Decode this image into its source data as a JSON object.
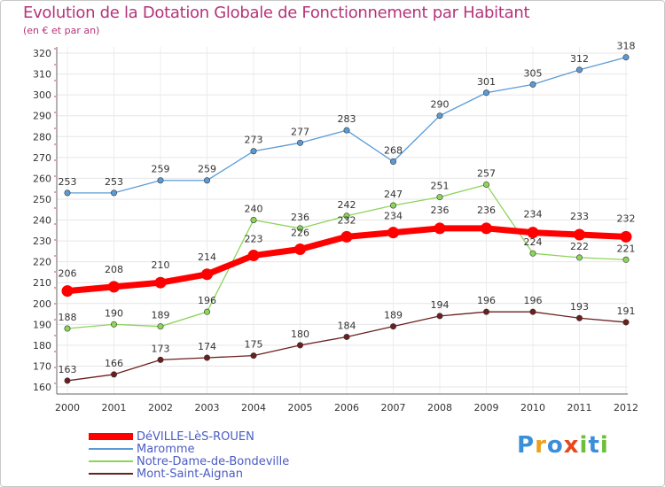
{
  "chart_data": {
    "type": "line",
    "title": "Evolution de la Dotation Globale de Fonctionnement par Habitant",
    "subtitle": "(en € et par an)",
    "x": [
      "2000",
      "2001",
      "2002",
      "2003",
      "2004",
      "2005",
      "2006",
      "2007",
      "2008",
      "2009",
      "2010",
      "2011",
      "2012"
    ],
    "ylim": [
      160,
      320
    ],
    "yticks": [
      160,
      170,
      180,
      190,
      200,
      210,
      220,
      230,
      240,
      250,
      260,
      270,
      280,
      290,
      300,
      310,
      320
    ],
    "grid": true,
    "legend_placement": "bottom-left",
    "series": [
      {
        "name": "DéVILLE-LèS-ROUEN",
        "color": "#ff0000",
        "values": [
          206,
          208,
          210,
          214,
          223,
          226,
          232,
          234,
          236,
          236,
          234,
          233,
          232
        ]
      },
      {
        "name": "Maromme",
        "color": "#5b9bd5",
        "values": [
          253,
          253,
          259,
          259,
          273,
          277,
          283,
          268,
          290,
          301,
          305,
          312,
          318
        ]
      },
      {
        "name": "Notre-Dame-de-Bondeville",
        "color": "#8cd55a",
        "values": [
          188,
          190,
          189,
          196,
          240,
          236,
          242,
          247,
          251,
          257,
          224,
          222,
          221
        ]
      },
      {
        "name": "Mont-Saint-Aignan",
        "color": "#6b1f1f",
        "values": [
          163,
          166,
          173,
          174,
          175,
          180,
          184,
          189,
          194,
          196,
          196,
          193,
          191
        ]
      }
    ]
  },
  "logo": {
    "text": "Proxiti",
    "letters": [
      "P",
      "r",
      "o",
      "x",
      "i",
      "t",
      "i"
    ],
    "colors": [
      "#3a8fd8",
      "#e8a21c",
      "#3a8fd8",
      "#e8471c",
      "#6cbf3a",
      "#3a8fd8",
      "#6cbf3a"
    ]
  }
}
